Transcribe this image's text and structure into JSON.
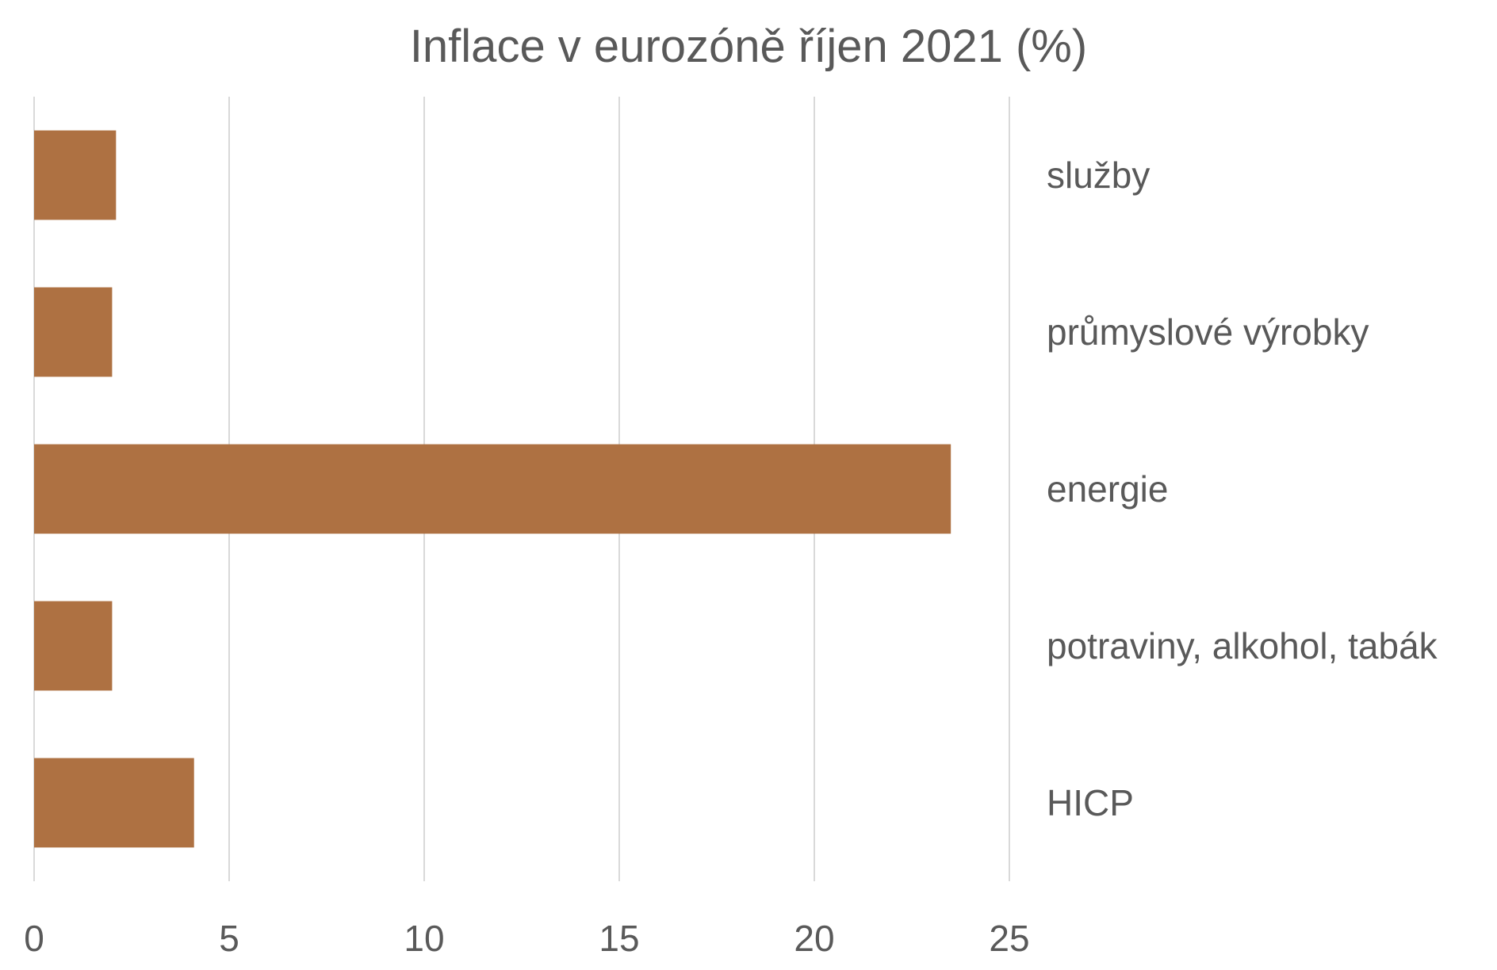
{
  "chart_data": {
    "type": "bar",
    "orientation": "horizontal",
    "title": "Inflace v eurozóně říjen 2021 (%)",
    "categories": [
      "služby",
      "průmyslové výrobky",
      "energie",
      "potraviny, alkohol, tabák",
      "HICP"
    ],
    "values": [
      2.1,
      2.0,
      23.5,
      2.0,
      4.1
    ],
    "xlim": [
      0,
      25
    ],
    "x_ticks": [
      "0",
      "5",
      "10",
      "15",
      "20",
      "25"
    ],
    "xlabel": "",
    "ylabel": "",
    "grid": "vertical",
    "legend": "none",
    "bar_color": "#AE7142"
  }
}
